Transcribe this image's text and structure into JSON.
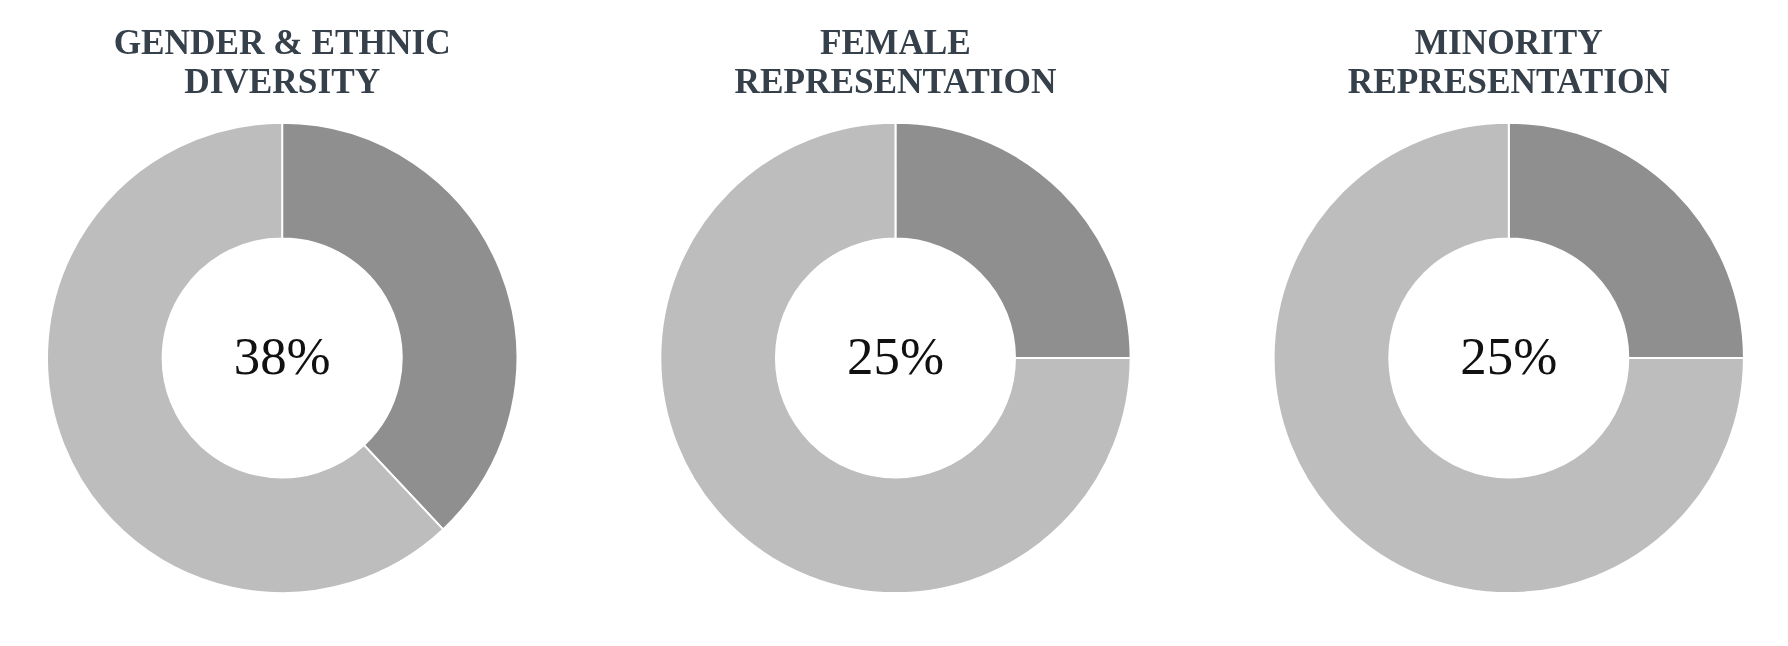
{
  "chart_data": [
    {
      "type": "donut",
      "title": "GENDER & ETHNIC\nDIVERSITY",
      "categories": [
        null,
        null
      ],
      "values": [
        38,
        62
      ],
      "colors": [
        "#8f8f8f",
        "#bdbdbd"
      ],
      "value_labels": [
        "38%",
        null
      ],
      "legend": false
    },
    {
      "type": "donut",
      "title": "FEMALE\nREPRESENTATION",
      "categories": [
        null,
        null
      ],
      "values": [
        25,
        75
      ],
      "colors": [
        "#8f8f8f",
        "#bdbdbd"
      ],
      "value_labels": [
        "25%",
        null
      ],
      "legend": false
    },
    {
      "type": "donut",
      "title": "MINORITY\nREPRESENTATION",
      "categories": [
        null,
        null
      ],
      "values": [
        25,
        75
      ],
      "colors": [
        "#8f8f8f",
        "#bdbdbd"
      ],
      "value_labels": [
        "25%",
        null
      ],
      "legend": false
    }
  ]
}
